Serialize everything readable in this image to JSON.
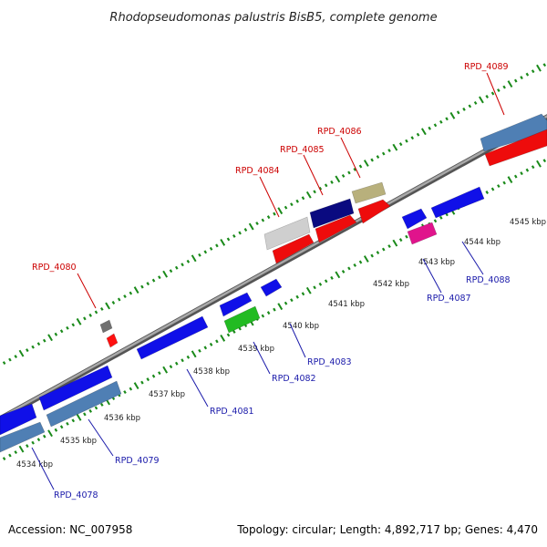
{
  "title": "Rhodopseudomonas palustris BisB5, complete genome",
  "footer": {
    "accession": "Accession: NC_007958",
    "summary": "Topology: circular; Length: 4,892,717 bp; Genes: 4,470"
  },
  "colors": {
    "tick": "#1a8a1a",
    "backbone": "#808080",
    "top_label": "#cc0000",
    "bottom_label": "#1a1aaa"
  },
  "kbp_ticks": [
    "4534 kbp",
    "4535 kbp",
    "4536 kbp",
    "4537 kbp",
    "4538 kbp",
    "4539 kbp",
    "4540 kbp",
    "4541 kbp",
    "4542 kbp",
    "4543 kbp",
    "4544 kbp",
    "4545 kbp"
  ],
  "genes_top": [
    {
      "label": "RPD_4080"
    },
    {
      "label": "RPD_4084"
    },
    {
      "label": "RPD_4085"
    },
    {
      "label": "RPD_4086"
    },
    {
      "label": "RPD_4089"
    }
  ],
  "genes_bottom": [
    {
      "label": "RPD_4078"
    },
    {
      "label": "RPD_4079"
    },
    {
      "label": "RPD_4081"
    },
    {
      "label": "RPD_4082"
    },
    {
      "label": "RPD_4083"
    },
    {
      "label": "RPD_4087"
    },
    {
      "label": "RPD_4088"
    }
  ]
}
